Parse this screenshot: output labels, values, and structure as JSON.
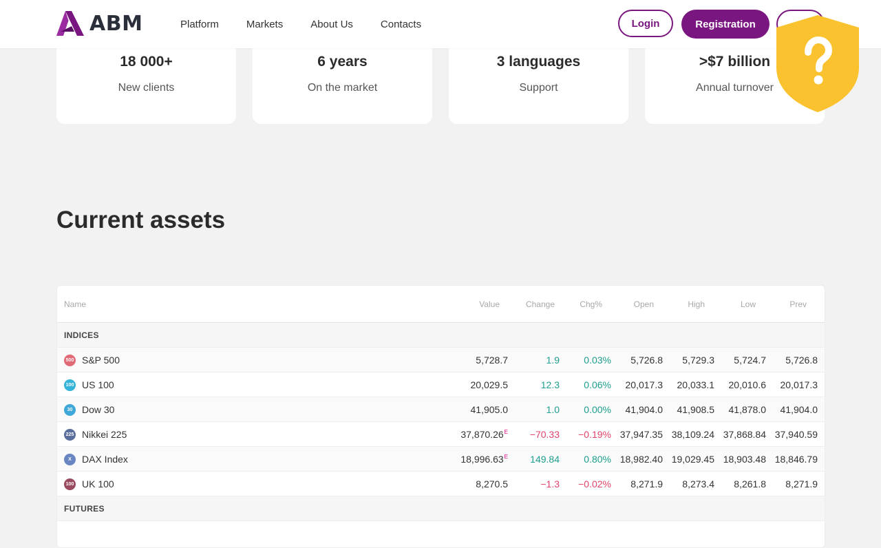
{
  "header": {
    "brand": "ABM",
    "nav": [
      "Platform",
      "Markets",
      "About Us",
      "Contacts"
    ],
    "login_label": "Login",
    "registration_label": "Registration",
    "lang_label": ""
  },
  "colors": {
    "accent": "#7a1680",
    "positive": "#1e9e8e",
    "negative": "#e0436a",
    "badge": "#f9c22e"
  },
  "stats": [
    {
      "value": "18 000+",
      "label": "New clients"
    },
    {
      "value": "6 years",
      "label": "On the market"
    },
    {
      "value": "3 languages",
      "label": "Support"
    },
    {
      "value": ">$7 billion",
      "label": "Annual turnover"
    }
  ],
  "badge_icon": "question-shield-icon",
  "section_title": "Current assets",
  "table": {
    "headers": [
      "Name",
      "Value",
      "Change",
      "Chg%",
      "Open",
      "High",
      "Low",
      "Prev"
    ],
    "groups": [
      {
        "title": "INDICES",
        "rows": [
          {
            "icon": "500",
            "icon_color": "#e26a77",
            "name": "S&P 500",
            "value": "5,728.7",
            "value_flag": "",
            "change": "1.9",
            "chg_pct": "0.03%",
            "dir": "pos",
            "open": "5,726.8",
            "high": "5,729.3",
            "low": "5,724.7",
            "prev": "5,726.8"
          },
          {
            "icon": "100",
            "icon_color": "#36b3d8",
            "name": "US 100",
            "value": "20,029.5",
            "value_flag": "",
            "change": "12.3",
            "chg_pct": "0.06%",
            "dir": "pos",
            "open": "20,017.3",
            "high": "20,033.1",
            "low": "20,010.6",
            "prev": "20,017.3"
          },
          {
            "icon": "30",
            "icon_color": "#3fa7d9",
            "name": "Dow 30",
            "value": "41,905.0",
            "value_flag": "",
            "change": "1.0",
            "chg_pct": "0.00%",
            "dir": "pos",
            "open": "41,904.0",
            "high": "41,908.5",
            "low": "41,878.0",
            "prev": "41,904.0"
          },
          {
            "icon": "225",
            "icon_color": "#5a6e9e",
            "name": "Nikkei 225",
            "value": "37,870.26",
            "value_flag": "E",
            "change": "−70.33",
            "chg_pct": "−0.19%",
            "dir": "neg",
            "open": "37,947.35",
            "high": "38,109.24",
            "low": "37,868.84",
            "prev": "37,940.59"
          },
          {
            "icon": "X",
            "icon_color": "#6a86c2",
            "name": "DAX Index",
            "value": "18,996.63",
            "value_flag": "E",
            "change": "149.84",
            "chg_pct": "0.80%",
            "dir": "pos",
            "open": "18,982.40",
            "high": "19,029.45",
            "low": "18,903.48",
            "prev": "18,846.79"
          },
          {
            "icon": "100",
            "icon_color": "#9a4a5e",
            "name": "UK 100",
            "value": "8,270.5",
            "value_flag": "",
            "change": "−1.3",
            "chg_pct": "−0.02%",
            "dir": "neg",
            "open": "8,271.9",
            "high": "8,273.4",
            "low": "8,261.8",
            "prev": "8,271.9"
          }
        ]
      },
      {
        "title": "FUTURES",
        "rows": []
      }
    ]
  }
}
